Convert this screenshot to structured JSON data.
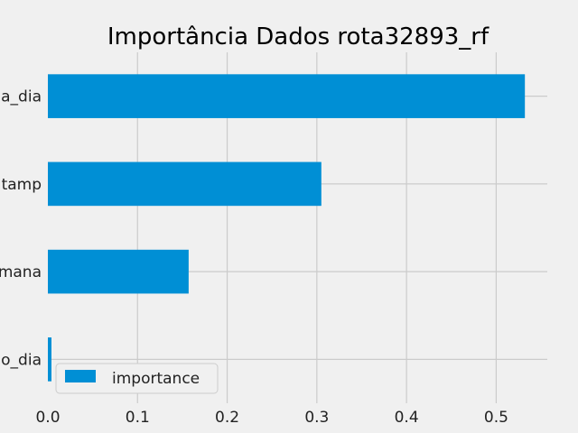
{
  "chart_data": {
    "type": "bar",
    "orientation": "horizontal",
    "title": "Importância Dados rota32893_rf",
    "categories": [
      "o_dia",
      "mana",
      "tamp",
      "a_dia"
    ],
    "series": [
      {
        "name": "importance",
        "values": [
          0.004,
          0.157,
          0.305,
          0.532
        ]
      }
    ],
    "xticks": [
      "0.0",
      "0.1",
      "0.2",
      "0.3",
      "0.4",
      "0.5"
    ],
    "xlim": [
      0,
      0.557
    ],
    "grid": true,
    "legend": "bottom-left",
    "colors": {
      "bar": "#008fd5",
      "background": "#f0f0f0",
      "grid": "#cbcbcb"
    }
  }
}
